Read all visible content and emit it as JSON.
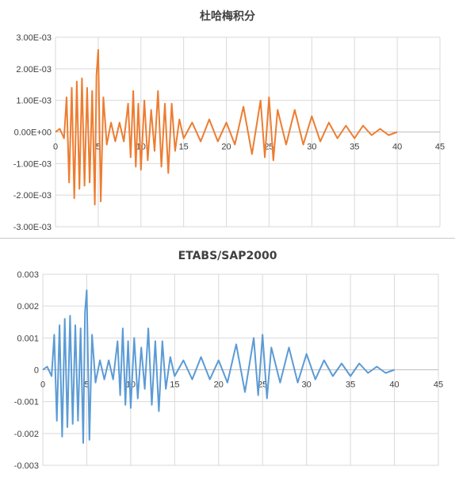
{
  "chart_data": [
    {
      "type": "line",
      "title": "杜哈梅积分",
      "xlabel": "",
      "ylabel": "",
      "xlim": [
        0,
        45
      ],
      "ylim": [
        -0.003,
        0.003
      ],
      "x_ticks": [
        "0",
        "5",
        "10",
        "15",
        "20",
        "25",
        "30",
        "35",
        "40",
        "45"
      ],
      "y_ticks": [
        "3.00E-03",
        "2.00E-03",
        "1.00E-03",
        "0.00E+00",
        "-1.00E-03",
        "-2.00E-03",
        "-3.00E-03"
      ],
      "grid": true,
      "legend": "none",
      "color": "#ED7D31",
      "series": [
        {
          "x": [
            0,
            0.5,
            1,
            1.3,
            1.6,
            1.9,
            2.2,
            2.5,
            2.8,
            3.1,
            3.4,
            3.7,
            4.0,
            4.3,
            4.6,
            4.8,
            5.0,
            5.3,
            5.6,
            6.0,
            6.5,
            7.0,
            7.5,
            8.0,
            8.5,
            8.8,
            9.1,
            9.4,
            9.7,
            10.0,
            10.4,
            10.8,
            11.2,
            11.6,
            12.0,
            12.4,
            12.8,
            13.2,
            13.6,
            14.0,
            14.5,
            15.0,
            16,
            17,
            18,
            19,
            20,
            21,
            22,
            23,
            24,
            24.5,
            25.0,
            25.5,
            26.0,
            27,
            28,
            29,
            30,
            31,
            32,
            33,
            34,
            35,
            36,
            37,
            38,
            39,
            40
          ],
          "y": [
            0,
            0.0001,
            -0.0002,
            0.0011,
            -0.0016,
            0.0014,
            -0.0021,
            0.0016,
            -0.0018,
            0.0017,
            -0.0017,
            0.0014,
            -0.0016,
            0.0013,
            -0.0023,
            0.0018,
            0.0026,
            -0.0022,
            0.0011,
            -0.0004,
            0.0003,
            -0.0003,
            0.0003,
            -0.0003,
            0.0009,
            -0.0008,
            0.0013,
            -0.0011,
            0.0009,
            -0.0012,
            0.001,
            -0.0009,
            0.0007,
            -0.0006,
            0.0013,
            -0.0011,
            0.0009,
            -0.0013,
            0.0009,
            -0.0006,
            0.0004,
            -0.0002,
            0.0003,
            -0.0003,
            0.0004,
            -0.0003,
            0.0003,
            -0.0004,
            0.0008,
            -0.0007,
            0.001,
            -0.0008,
            0.0011,
            -0.0009,
            0.0007,
            -0.0004,
            0.0007,
            -0.0004,
            0.0005,
            -0.0003,
            0.0003,
            -0.0002,
            0.0002,
            -0.0002,
            0.0002,
            -0.0001,
            0.0001,
            -0.0001,
            0
          ]
        }
      ]
    },
    {
      "type": "line",
      "title": "ETABS/SAP2000",
      "xlabel": "",
      "ylabel": "",
      "xlim": [
        0,
        45
      ],
      "ylim": [
        -0.003,
        0.003
      ],
      "x_ticks": [
        "0",
        "5",
        "10",
        "15",
        "20",
        "25",
        "30",
        "35",
        "40",
        "45"
      ],
      "y_ticks": [
        "0.003",
        "0.002",
        "0.001",
        "0",
        "-0.001",
        "-0.002",
        "-0.003"
      ],
      "grid": true,
      "legend": "none",
      "color": "#5B9BD5",
      "series": [
        {
          "x": [
            0,
            0.5,
            1,
            1.3,
            1.6,
            1.9,
            2.2,
            2.5,
            2.8,
            3.1,
            3.4,
            3.7,
            4.0,
            4.3,
            4.6,
            4.8,
            5.0,
            5.3,
            5.6,
            6.0,
            6.5,
            7.0,
            7.5,
            8.0,
            8.5,
            8.8,
            9.1,
            9.4,
            9.7,
            10.0,
            10.4,
            10.8,
            11.2,
            11.6,
            12.0,
            12.4,
            12.8,
            13.2,
            13.6,
            14.0,
            14.5,
            15.0,
            16,
            17,
            18,
            19,
            20,
            21,
            22,
            23,
            24,
            24.5,
            25.0,
            25.5,
            26.0,
            27,
            28,
            29,
            30,
            31,
            32,
            33,
            34,
            35,
            36,
            37,
            38,
            39,
            40
          ],
          "y": [
            0,
            0.0001,
            -0.0002,
            0.0011,
            -0.0016,
            0.0014,
            -0.0021,
            0.0016,
            -0.0018,
            0.0017,
            -0.0017,
            0.0014,
            -0.0016,
            0.0013,
            -0.0023,
            0.0018,
            0.0025,
            -0.0022,
            0.0011,
            -0.0004,
            0.0003,
            -0.0003,
            0.0003,
            -0.0003,
            0.0009,
            -0.0008,
            0.0013,
            -0.0011,
            0.0009,
            -0.0012,
            0.001,
            -0.0009,
            0.0007,
            -0.0006,
            0.0013,
            -0.0011,
            0.0009,
            -0.0013,
            0.0009,
            -0.0006,
            0.0004,
            -0.0002,
            0.0003,
            -0.0003,
            0.0004,
            -0.0003,
            0.0003,
            -0.0004,
            0.0008,
            -0.0007,
            0.001,
            -0.0008,
            0.0011,
            -0.0009,
            0.0007,
            -0.0004,
            0.0007,
            -0.0004,
            0.0005,
            -0.0003,
            0.0003,
            -0.0002,
            0.0002,
            -0.0002,
            0.0002,
            -0.0001,
            0.0001,
            -0.0001,
            0
          ]
        }
      ]
    }
  ]
}
